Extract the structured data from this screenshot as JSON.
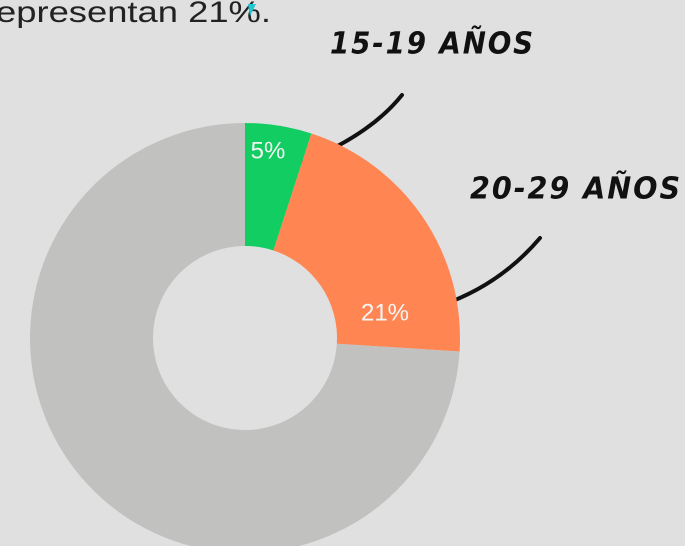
{
  "chart_data": {
    "type": "donut",
    "subtitle": "epresentan 21%.",
    "categories": [
      "15-19 AÑOS",
      "20-29 AÑOS",
      null
    ],
    "values": [
      5,
      21,
      74
    ],
    "value_labels": [
      "5%",
      "21%",
      null
    ],
    "colors": [
      "#12cd62",
      "#ff8653",
      "#c1c2c0"
    ]
  }
}
